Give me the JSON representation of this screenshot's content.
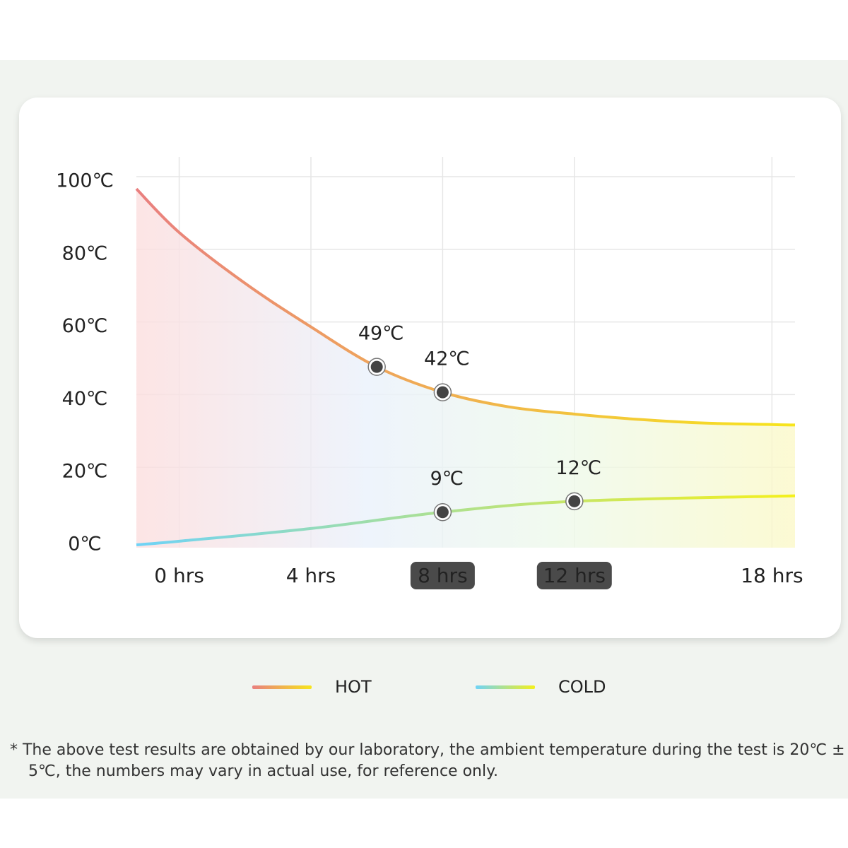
{
  "chart_data": {
    "type": "line",
    "xlim": [
      -1.3,
      18.7
    ],
    "xticks": [
      {
        "value": 0,
        "label": "0 hrs"
      },
      {
        "value": 4,
        "label": "4 hrs"
      },
      {
        "value": 8,
        "label": "8 hrs"
      },
      {
        "value": 12,
        "label": "12 hrs"
      },
      {
        "value": 18,
        "label": "18 hrs"
      }
    ],
    "highlighted_xticks": [
      8,
      12
    ],
    "ylim": [
      0,
      100
    ],
    "yticks": [
      {
        "value": 0,
        "label": "0℃"
      },
      {
        "value": 20,
        "label": "20℃"
      },
      {
        "value": 40,
        "label": "40℃"
      },
      {
        "value": 60,
        "label": "60℃"
      },
      {
        "value": 80,
        "label": "80℃"
      },
      {
        "value": 100,
        "label": "100℃"
      }
    ],
    "grid": true,
    "series": [
      {
        "name": "HOT",
        "colors": [
          "#e97f7f",
          "#f7e51c"
        ],
        "x": [
          -1.3,
          0,
          2,
          4,
          6,
          8,
          10,
          12,
          14,
          16,
          18.7
        ],
        "values": [
          98,
          86,
          72,
          60,
          49,
          42,
          38,
          36,
          34.5,
          33.5,
          33
        ]
      },
      {
        "name": "COLD",
        "colors": [
          "#6fd3f7",
          "#f4f01c"
        ],
        "x": [
          -1.3,
          0,
          4,
          8,
          12,
          18.7
        ],
        "values": [
          0,
          1,
          4.5,
          9,
          12,
          13.5
        ]
      }
    ],
    "points": [
      {
        "x": 6,
        "y": 49,
        "label": "49℃"
      },
      {
        "x": 8,
        "y": 42,
        "label": "42℃"
      },
      {
        "x": 8,
        "y": 9,
        "label": "9℃"
      },
      {
        "x": 12,
        "y": 12,
        "label": "12℃"
      }
    ],
    "note": "* The above test results are obtained by our laboratory, the ambient temperature during the test is 20℃ ± 5℃, the numbers may vary in actual use, for reference only."
  }
}
